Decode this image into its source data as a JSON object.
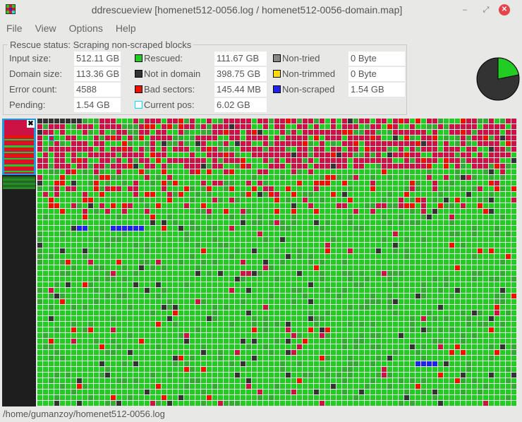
{
  "window": {
    "title": "ddrescueview [homenet512-0056.log / homenet512-0056-domain.map]",
    "minimize": "‒",
    "restore": "⤢",
    "close": "✕"
  },
  "menu": [
    "File",
    "View",
    "Options",
    "Help"
  ],
  "status": {
    "title": "Rescue status:  Scraping non-scraped blocks",
    "col1": [
      {
        "label": "Input size:",
        "value": "512.11 GB"
      },
      {
        "label": "Domain size:",
        "value": "113.36 GB"
      },
      {
        "label": "Error count:",
        "value": "4588"
      },
      {
        "label": "Pending:",
        "value": "1.54 GB"
      }
    ],
    "col2": [
      {
        "label": "Rescued:",
        "value": "111.67 GB",
        "color": "#22cc22"
      },
      {
        "label": "Not in domain",
        "value": "398.75 GB",
        "color": "#333333"
      },
      {
        "label": "Bad sectors:",
        "value": "145.44 MB",
        "color": "#ee1100"
      },
      {
        "label": "Current pos:",
        "value": "6.02 GB",
        "color": "#00e0ff",
        "outline": true
      }
    ],
    "col3": [
      {
        "label": "Non-tried",
        "value": "0 Byte",
        "color": "#888888"
      },
      {
        "label": "Non-trimmed",
        "value": "0 Byte",
        "color": "#ffdd00"
      },
      {
        "label": "Non-scraped",
        "value": "1.54 GB",
        "color": "#2222ee"
      }
    ]
  },
  "pie": {
    "rescued_fraction": 0.218,
    "rescued_color": "#22cc22",
    "rest_color": "#333333"
  },
  "block_colors": {
    "rescued": "#22cc22",
    "rescued_dim": "#33aa33",
    "bad_sector": "#cc1144",
    "bad_bright": "#ee1100",
    "not_in_domain": "#333333",
    "non_scraped": "#2222ee",
    "current_pos": "#00e0ff"
  },
  "statusbar": "/home/gumanzoy/homenet512-0056.log"
}
